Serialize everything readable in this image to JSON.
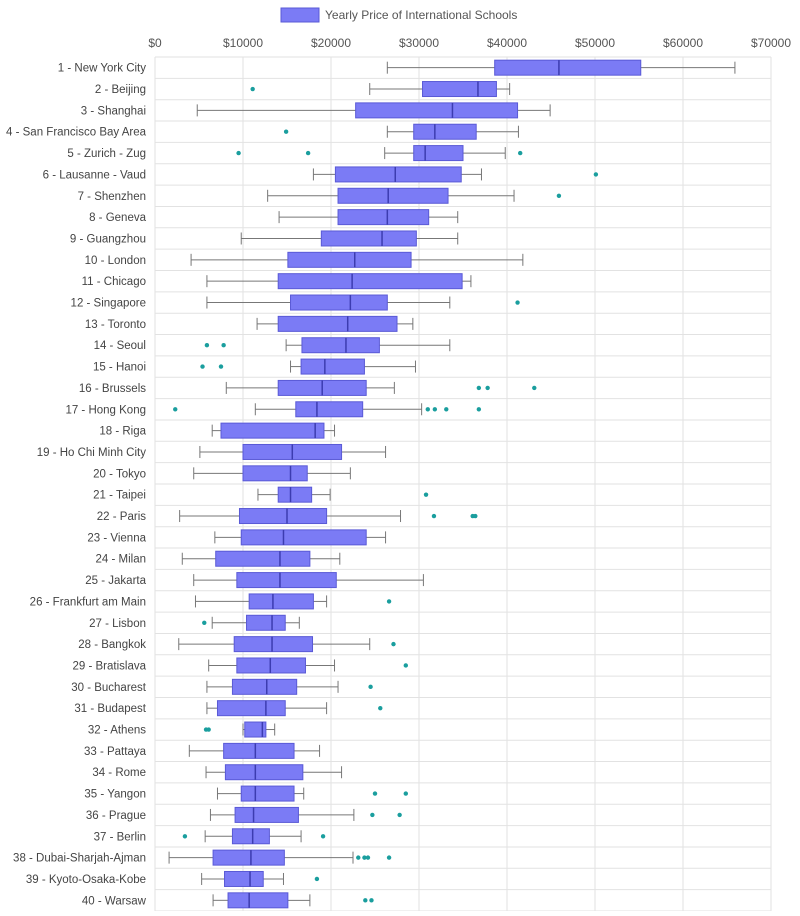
{
  "chart_data": {
    "type": "boxplot",
    "orientation": "horizontal",
    "legend": {
      "label": "Yearly Price of International Schools",
      "position": "top",
      "color": "#7b7bf5"
    },
    "xlim": [
      0,
      70000
    ],
    "xticks": [
      {
        "value": 0,
        "label": "$0"
      },
      {
        "value": 10000,
        "label": "$10000"
      },
      {
        "value": 20000,
        "label": "$20000"
      },
      {
        "value": 30000,
        "label": "$30000"
      },
      {
        "value": 40000,
        "label": "$40000"
      },
      {
        "value": 50000,
        "label": "$50000"
      },
      {
        "value": 60000,
        "label": "$60000"
      },
      {
        "value": 70000,
        "label": "$70000"
      }
    ],
    "grid": true,
    "colors": {
      "box_fill": "#7b7bf5",
      "box_stroke": "#5a5ad6",
      "whisker": "#777777",
      "outlier": "#1a9e9e",
      "grid": "#e2e2e2"
    },
    "categories": [
      {
        "label": "1 - New York City",
        "min": 26400,
        "q1": 38600,
        "median": 45900,
        "q3": 55200,
        "max": 65900,
        "outliers": []
      },
      {
        "label": "2 - Beijing",
        "min": 24400,
        "q1": 30400,
        "median": 36700,
        "q3": 38800,
        "max": 40300,
        "outliers": [
          11100
        ]
      },
      {
        "label": "3 - Shanghai",
        "min": 4800,
        "q1": 22800,
        "median": 33800,
        "q3": 41200,
        "max": 44900,
        "outliers": []
      },
      {
        "label": "4 - San Francisco Bay Area",
        "min": 26400,
        "q1": 29400,
        "median": 31800,
        "q3": 36500,
        "max": 41300,
        "outliers": [
          14900
        ]
      },
      {
        "label": "5 - Zurich - Zug",
        "min": 26100,
        "q1": 29400,
        "median": 30700,
        "q3": 35000,
        "max": 39800,
        "outliers": [
          9500,
          17400,
          41500
        ]
      },
      {
        "label": "6 - Lausanne - Vaud",
        "min": 18000,
        "q1": 20500,
        "median": 27300,
        "q3": 34800,
        "max": 37100,
        "outliers": [
          50100
        ]
      },
      {
        "label": "7 - Shenzhen",
        "min": 12800,
        "q1": 20800,
        "median": 26500,
        "q3": 33300,
        "max": 40800,
        "outliers": [
          45900
        ]
      },
      {
        "label": "8 - Geneva",
        "min": 14100,
        "q1": 20800,
        "median": 26400,
        "q3": 31100,
        "max": 34400,
        "outliers": []
      },
      {
        "label": "9 - Guangzhou",
        "min": 9800,
        "q1": 18900,
        "median": 25800,
        "q3": 29700,
        "max": 34400,
        "outliers": []
      },
      {
        "label": "10 - London",
        "min": 4100,
        "q1": 15100,
        "median": 22700,
        "q3": 29100,
        "max": 41800,
        "outliers": []
      },
      {
        "label": "11 - Chicago",
        "min": 5900,
        "q1": 14000,
        "median": 22400,
        "q3": 34900,
        "max": 35900,
        "outliers": []
      },
      {
        "label": "12 - Singapore",
        "min": 5900,
        "q1": 15400,
        "median": 22200,
        "q3": 26400,
        "max": 33500,
        "outliers": [
          41200
        ]
      },
      {
        "label": "13 - Toronto",
        "min": 11600,
        "q1": 14000,
        "median": 21900,
        "q3": 27500,
        "max": 29300,
        "outliers": []
      },
      {
        "label": "14 - Seoul",
        "min": 14900,
        "q1": 16700,
        "median": 21700,
        "q3": 25500,
        "max": 33500,
        "outliers": [
          5900,
          7800
        ]
      },
      {
        "label": "15 - Hanoi",
        "min": 15400,
        "q1": 16600,
        "median": 19300,
        "q3": 23800,
        "max": 29600,
        "outliers": [
          5400,
          7500
        ]
      },
      {
        "label": "16 - Brussels",
        "min": 8100,
        "q1": 14000,
        "median": 19000,
        "q3": 24000,
        "max": 27200,
        "outliers": [
          36800,
          37800,
          43100
        ]
      },
      {
        "label": "17 - Hong Kong",
        "min": 11400,
        "q1": 16000,
        "median": 18400,
        "q3": 23600,
        "max": 30300,
        "outliers": [
          2300,
          31000,
          31800,
          33100,
          36800
        ]
      },
      {
        "label": "18 - Riga",
        "min": 6500,
        "q1": 7500,
        "median": 18200,
        "q3": 19200,
        "max": 20400,
        "outliers": []
      },
      {
        "label": "19 - Ho Chi Minh City",
        "min": 5100,
        "q1": 10000,
        "median": 15600,
        "q3": 21200,
        "max": 26200,
        "outliers": []
      },
      {
        "label": "20 - Tokyo",
        "min": 4400,
        "q1": 10000,
        "median": 15400,
        "q3": 17300,
        "max": 22200,
        "outliers": []
      },
      {
        "label": "21 - Taipei",
        "min": 11700,
        "q1": 14000,
        "median": 15400,
        "q3": 17800,
        "max": 19900,
        "outliers": [
          30800
        ]
      },
      {
        "label": "22 - Paris",
        "min": 2800,
        "q1": 9600,
        "median": 15000,
        "q3": 19500,
        "max": 27900,
        "outliers": [
          31700,
          36100,
          36400
        ]
      },
      {
        "label": "23 - Vienna",
        "min": 6800,
        "q1": 9800,
        "median": 14600,
        "q3": 24000,
        "max": 26200,
        "outliers": []
      },
      {
        "label": "24 - Milan",
        "min": 3100,
        "q1": 6900,
        "median": 14200,
        "q3": 17600,
        "max": 21000,
        "outliers": []
      },
      {
        "label": "25 - Jakarta",
        "min": 4400,
        "q1": 9300,
        "median": 14200,
        "q3": 20600,
        "max": 30500,
        "outliers": []
      },
      {
        "label": "26 - Frankfurt am Main",
        "min": 4600,
        "q1": 10700,
        "median": 13400,
        "q3": 18000,
        "max": 19500,
        "outliers": [
          26600
        ]
      },
      {
        "label": "27 - Lisbon",
        "min": 6500,
        "q1": 10400,
        "median": 13300,
        "q3": 14800,
        "max": 16400,
        "outliers": [
          5600
        ]
      },
      {
        "label": "28 - Bangkok",
        "min": 2700,
        "q1": 9000,
        "median": 13300,
        "q3": 17900,
        "max": 24400,
        "outliers": [
          27100
        ]
      },
      {
        "label": "29 - Bratislava",
        "min": 6100,
        "q1": 9300,
        "median": 13100,
        "q3": 17100,
        "max": 20400,
        "outliers": [
          28500
        ]
      },
      {
        "label": "30 - Bucharest",
        "min": 5900,
        "q1": 8800,
        "median": 12700,
        "q3": 16100,
        "max": 20800,
        "outliers": [
          24500
        ]
      },
      {
        "label": "31 - Budapest",
        "min": 5900,
        "q1": 7100,
        "median": 12600,
        "q3": 14800,
        "max": 19500,
        "outliers": [
          25600
        ]
      },
      {
        "label": "32 - Athens",
        "min": 10000,
        "q1": 10200,
        "median": 12200,
        "q3": 12600,
        "max": 13600,
        "outliers": [
          5800,
          6100
        ]
      },
      {
        "label": "33 - Pattaya",
        "min": 3900,
        "q1": 7800,
        "median": 11400,
        "q3": 15800,
        "max": 18700,
        "outliers": []
      },
      {
        "label": "34 - Rome",
        "min": 5800,
        "q1": 8000,
        "median": 11400,
        "q3": 16800,
        "max": 21200,
        "outliers": []
      },
      {
        "label": "35 - Yangon",
        "min": 7100,
        "q1": 9800,
        "median": 11400,
        "q3": 15800,
        "max": 16900,
        "outliers": [
          25000,
          28500
        ]
      },
      {
        "label": "36 - Prague",
        "min": 6300,
        "q1": 9100,
        "median": 11200,
        "q3": 16300,
        "max": 22600,
        "outliers": [
          24700,
          27800
        ]
      },
      {
        "label": "37 - Berlin",
        "min": 5700,
        "q1": 8800,
        "median": 11100,
        "q3": 13000,
        "max": 16600,
        "outliers": [
          3400,
          19100
        ]
      },
      {
        "label": "38 - Dubai-Sharjah-Ajman",
        "min": 1600,
        "q1": 6600,
        "median": 10900,
        "q3": 14700,
        "max": 22500,
        "outliers": [
          23100,
          23800,
          24200,
          26600
        ]
      },
      {
        "label": "39 - Kyoto-Osaka-Kobe",
        "min": 5300,
        "q1": 7900,
        "median": 10800,
        "q3": 12300,
        "max": 14600,
        "outliers": [
          18400
        ]
      },
      {
        "label": "40 - Warsaw",
        "min": 6600,
        "q1": 8300,
        "median": 10700,
        "q3": 15100,
        "max": 17600,
        "outliers": [
          23900,
          24600
        ]
      }
    ]
  }
}
